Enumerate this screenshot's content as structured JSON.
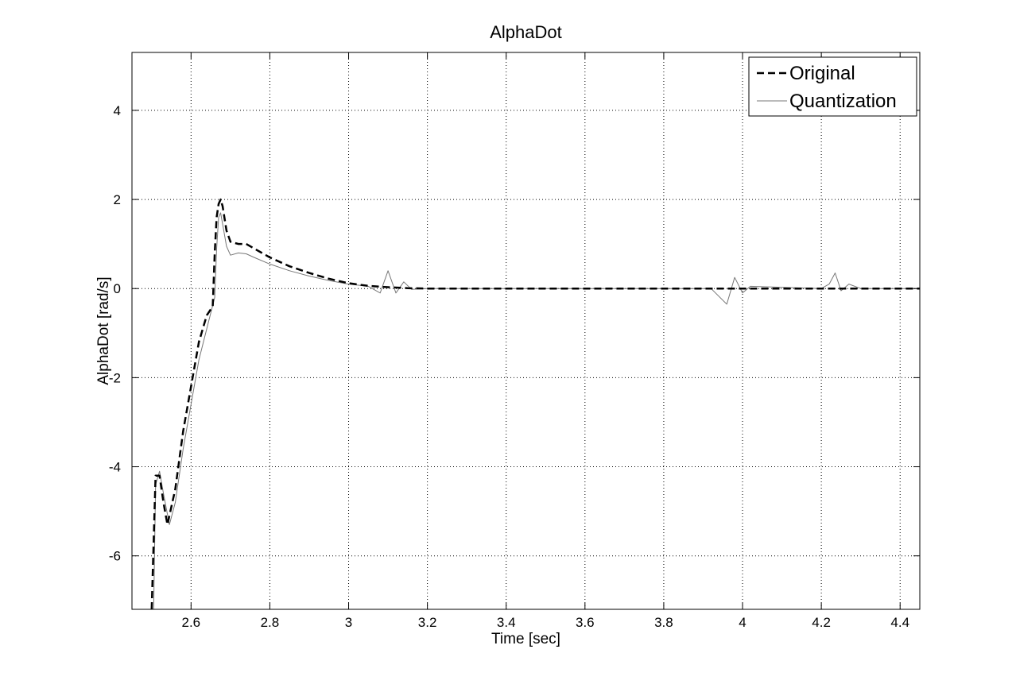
{
  "chart_data": {
    "type": "line",
    "title": "AlphaDot",
    "xlabel": "Time [sec]",
    "ylabel": "AlphaDot [rad/s]",
    "xlim": [
      2.45,
      4.45
    ],
    "ylim": [
      -7.2,
      5.3
    ],
    "xticks": [
      2.6,
      2.8,
      3.0,
      3.2,
      3.4,
      3.6,
      3.8,
      4.0,
      4.2,
      4.4
    ],
    "xtick_labels": [
      "2.6",
      "2.8",
      "3",
      "3.2",
      "3.4",
      "3.6",
      "3.8",
      "4",
      "4.2",
      "4.4"
    ],
    "yticks": [
      -6,
      -4,
      -2,
      0,
      2,
      4
    ],
    "ytick_labels": [
      "-6",
      "-4",
      "-2",
      "0",
      "2",
      "4"
    ],
    "grid": true,
    "legend_position": "top-right",
    "series": [
      {
        "name": "Original",
        "style": "dashed",
        "color": "#000000",
        "x": [
          2.5,
          2.51,
          2.52,
          2.53,
          2.54,
          2.56,
          2.58,
          2.6,
          2.62,
          2.64,
          2.655,
          2.66,
          2.665,
          2.67,
          2.675,
          2.68,
          2.69,
          2.7,
          2.72,
          2.74,
          2.76,
          2.8,
          2.85,
          2.9,
          2.95,
          3.0,
          3.05,
          3.1,
          3.15,
          3.2,
          3.4,
          3.6,
          3.8,
          4.0,
          4.2,
          4.4,
          4.45
        ],
        "y": [
          -7.2,
          -4.2,
          -4.2,
          -4.8,
          -5.3,
          -4.5,
          -3.2,
          -2.2,
          -1.2,
          -0.6,
          -0.4,
          0.8,
          1.6,
          1.9,
          2.0,
          1.85,
          1.3,
          1.05,
          1.0,
          1.0,
          0.9,
          0.7,
          0.5,
          0.35,
          0.22,
          0.12,
          0.06,
          0.03,
          0.01,
          0.0,
          0.0,
          0.0,
          0.0,
          0.0,
          0.0,
          0.0,
          0.0
        ]
      },
      {
        "name": "Quantization",
        "style": "solid",
        "color": "#777777",
        "x": [
          2.505,
          2.51,
          2.52,
          2.53,
          2.545,
          2.56,
          2.58,
          2.6,
          2.62,
          2.64,
          2.66,
          2.665,
          2.67,
          2.675,
          2.68,
          2.69,
          2.7,
          2.72,
          2.74,
          2.76,
          2.8,
          2.85,
          2.9,
          2.95,
          3.0,
          3.05,
          3.08,
          3.1,
          3.12,
          3.14,
          3.16,
          3.2,
          3.4,
          3.6,
          3.8,
          3.92,
          3.96,
          3.98,
          4.0,
          4.02,
          4.2,
          4.22,
          4.235,
          4.25,
          4.27,
          4.3,
          4.45
        ],
        "y": [
          -7.2,
          -4.4,
          -4.1,
          -4.6,
          -5.3,
          -4.8,
          -3.6,
          -2.6,
          -1.6,
          -0.9,
          -0.2,
          0.9,
          1.6,
          1.7,
          1.45,
          0.95,
          0.75,
          0.8,
          0.78,
          0.7,
          0.55,
          0.4,
          0.28,
          0.18,
          0.1,
          0.05,
          -0.1,
          0.4,
          -0.1,
          0.15,
          -0.02,
          0.0,
          0.0,
          0.0,
          0.0,
          0.0,
          -0.35,
          0.25,
          -0.1,
          0.05,
          0.0,
          0.1,
          0.35,
          -0.05,
          0.1,
          0.0,
          0.0
        ]
      }
    ]
  }
}
